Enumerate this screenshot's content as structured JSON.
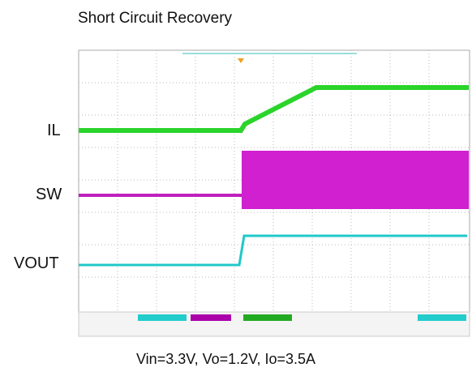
{
  "title": "Short Circuit Recovery",
  "traces": [
    {
      "label": "IL"
    },
    {
      "label": "SW"
    },
    {
      "label": "VOUT"
    }
  ],
  "caption": "Vin=3.3V, Vo=1.2V, Io=3.5A"
}
